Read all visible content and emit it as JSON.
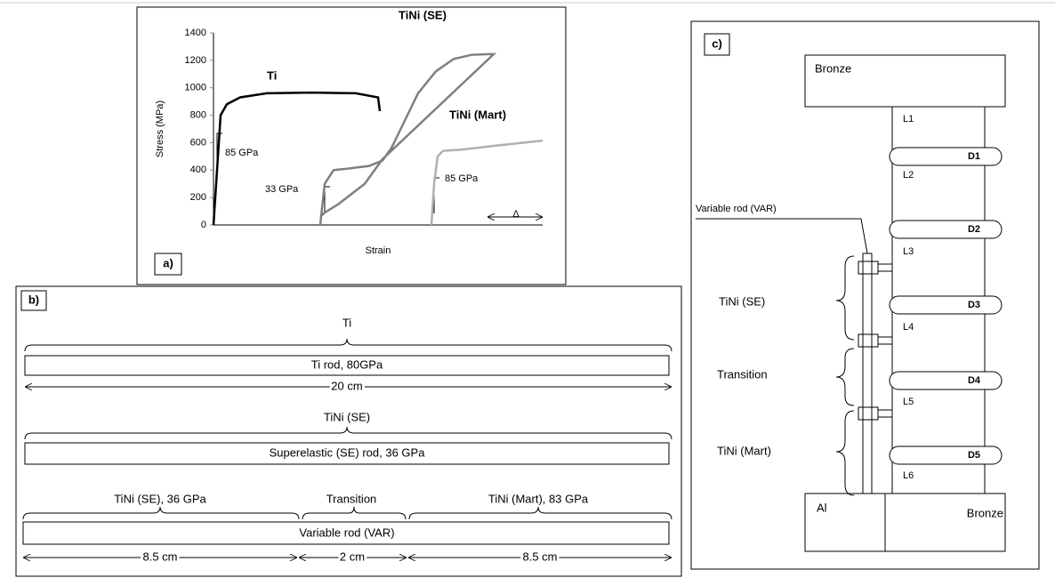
{
  "chart_data": {
    "type": "line",
    "label": "a)",
    "ylabel": "Stress (MPa)",
    "xlabel": "Strain",
    "ylim": [
      0,
      1400
    ],
    "yticks": [
      0,
      200,
      400,
      600,
      800,
      1000,
      1200,
      1400
    ],
    "xlim": [
      0,
      370
    ],
    "grid": false,
    "series": [
      {
        "name": "Ti",
        "color": "#000000",
        "x": [
          0,
          8,
          15,
          30,
          60,
          110,
          160,
          185,
          187
        ],
        "values": [
          0,
          800,
          880,
          930,
          960,
          965,
          960,
          930,
          830
        ]
      },
      {
        "name": "TiNi (SE)",
        "color": "#7f7f7f",
        "x": [
          120,
          125,
          135,
          150,
          175,
          190,
          200,
          215,
          230,
          250,
          270,
          290,
          310,
          315,
          190,
          170,
          140,
          125,
          120
        ],
        "values": [
          0,
          300,
          400,
          410,
          430,
          470,
          560,
          760,
          960,
          1120,
          1210,
          1240,
          1245,
          1245,
          480,
          300,
          150,
          90,
          60
        ]
      },
      {
        "name": "TiNi (Mart)",
        "color": "#b0b0b0",
        "x": [
          245,
          248,
          252,
          258,
          280,
          320,
          370
        ],
        "values": [
          0,
          300,
          500,
          540,
          550,
          580,
          615
        ]
      }
    ],
    "annotations": [
      "85 GPa",
      "33 GPa",
      "85 GPa",
      "Δ"
    ]
  },
  "panel_b": {
    "label": "b)",
    "rows": [
      {
        "title": "Ti",
        "bar": "Ti rod, 80GPa",
        "length": "20 cm"
      },
      {
        "title": "TiNi (SE)",
        "bar": "Superelastic (SE) rod, 36 GPa"
      },
      {
        "segments": [
          "TiNi (SE), 36 GPa",
          "Transition",
          "TiNi (Mart), 83 GPa"
        ],
        "bar": "Variable rod (VAR)",
        "lengths": [
          "8.5 cm",
          "2 cm",
          "8.5 cm"
        ]
      }
    ]
  },
  "panel_c": {
    "label": "c)",
    "top": "Bronze",
    "bottom_left": "Al",
    "bottom_right": "Bronze",
    "layers": [
      "L1",
      "L2",
      "L3",
      "L4",
      "L5",
      "L6"
    ],
    "sensors": [
      "D1",
      "D2",
      "D3",
      "D4",
      "D5"
    ],
    "rod": "Variable rod (VAR)",
    "zones": [
      "TiNi (SE)",
      "Transition",
      "TiNi (Mart)"
    ]
  }
}
